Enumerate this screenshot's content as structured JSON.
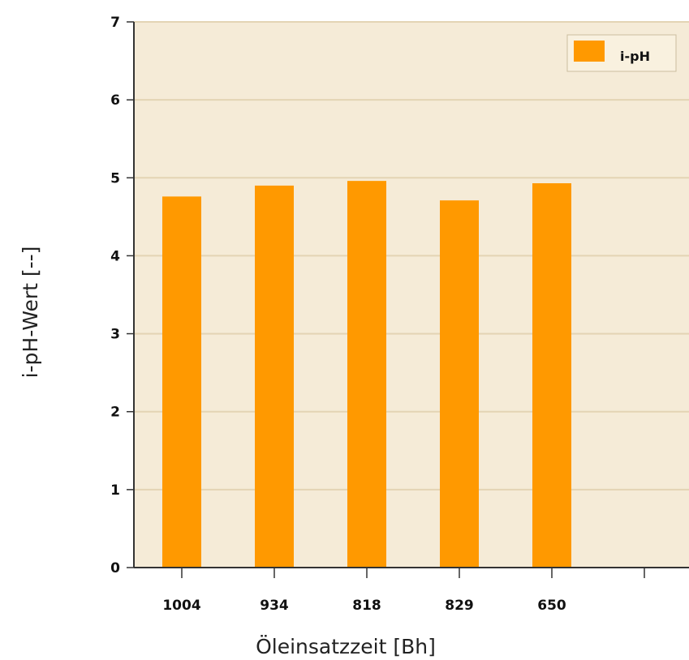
{
  "chart_data": {
    "type": "bar",
    "categories": [
      "1004",
      "934",
      "818",
      "829",
      "650"
    ],
    "series": [
      {
        "name": "i-pH",
        "values": [
          4.76,
          4.9,
          4.96,
          4.71,
          4.93
        ]
      }
    ],
    "xlabel": "Öleinsatzzeit [Bh]",
    "ylabel": "i-pH-Wert [--]",
    "ylim": [
      0,
      7
    ],
    "yticks": [
      "0",
      "1",
      "2",
      "3",
      "4",
      "5",
      "6",
      "7"
    ],
    "grid": true,
    "legend": "top-right",
    "colors": {
      "bar": "#ff9900",
      "plot_background": "#f5ebd7",
      "grid": "#e3d4b4",
      "axis": "#333333"
    }
  }
}
